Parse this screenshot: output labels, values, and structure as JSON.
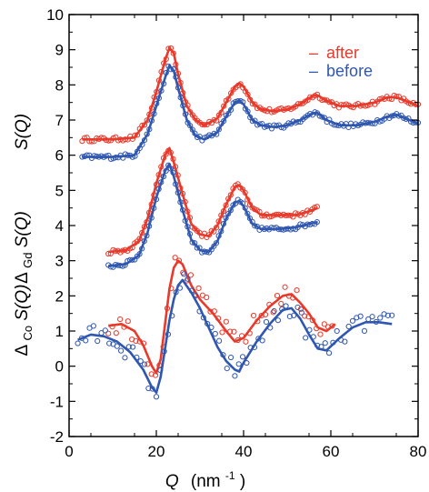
{
  "chart_data": {
    "type": "scatter",
    "xlabel": "Q",
    "xlabel_unit": "(nm",
    "xlabel_unit_exp": "-1",
    "xlabel_unit_close": ")",
    "xlim": [
      0,
      80
    ],
    "ylim": [
      -2,
      10
    ],
    "xticks": [
      "0",
      "20",
      "40",
      "60",
      "80"
    ],
    "yticks": [
      "-2",
      "-1",
      "0",
      "1",
      "2",
      "3",
      "4",
      "5",
      "6",
      "7",
      "8",
      "9",
      "10"
    ],
    "grid": false,
    "legend_position": "top-right",
    "legend": [
      {
        "label": "after",
        "dash": "–",
        "color": "#e8392a"
      },
      {
        "label": "before",
        "dash": "–",
        "color": "#2f57b0"
      }
    ],
    "row_labels": [
      {
        "main": "S(Q)"
      },
      {
        "prefix": "Δ",
        "sub": "Gd",
        "main": "S(Q)"
      },
      {
        "prefix": "Δ",
        "sub": "Co",
        "main": "S(Q)"
      }
    ],
    "colors": {
      "after": "#e8392a",
      "before": "#2f57b0"
    },
    "series": [
      {
        "name": "after",
        "group": "S(Q)",
        "color": "#e8392a",
        "curve": [
          [
            3,
            6.45
          ],
          [
            10,
            6.45
          ],
          [
            15,
            6.5
          ],
          [
            18,
            7.0
          ],
          [
            20,
            7.8
          ],
          [
            22,
            8.7
          ],
          [
            23,
            9.05
          ],
          [
            24,
            8.9
          ],
          [
            25,
            8.3
          ],
          [
            27,
            7.4
          ],
          [
            29,
            7.0
          ],
          [
            31,
            6.85
          ],
          [
            34,
            7.05
          ],
          [
            36,
            7.5
          ],
          [
            38,
            7.95
          ],
          [
            39,
            8.05
          ],
          [
            40,
            7.95
          ],
          [
            42,
            7.5
          ],
          [
            44,
            7.3
          ],
          [
            47,
            7.25
          ],
          [
            50,
            7.3
          ],
          [
            53,
            7.45
          ],
          [
            56,
            7.7
          ],
          [
            57,
            7.7
          ],
          [
            59,
            7.55
          ],
          [
            62,
            7.4
          ],
          [
            66,
            7.4
          ],
          [
            70,
            7.5
          ],
          [
            73,
            7.65
          ],
          [
            75,
            7.65
          ],
          [
            77,
            7.55
          ],
          [
            80,
            7.4
          ]
        ]
      },
      {
        "name": "before",
        "group": "S(Q)",
        "color": "#2f57b0",
        "curve": [
          [
            3,
            5.95
          ],
          [
            10,
            5.95
          ],
          [
            15,
            6.0
          ],
          [
            18,
            6.6
          ],
          [
            20,
            7.4
          ],
          [
            22,
            8.2
          ],
          [
            23,
            8.55
          ],
          [
            24,
            8.4
          ],
          [
            25,
            7.9
          ],
          [
            27,
            7.0
          ],
          [
            29,
            6.55
          ],
          [
            31,
            6.45
          ],
          [
            34,
            6.65
          ],
          [
            36,
            7.1
          ],
          [
            38,
            7.5
          ],
          [
            39,
            7.55
          ],
          [
            40,
            7.45
          ],
          [
            42,
            7.0
          ],
          [
            44,
            6.85
          ],
          [
            47,
            6.8
          ],
          [
            50,
            6.85
          ],
          [
            53,
            7.0
          ],
          [
            56,
            7.2
          ],
          [
            57,
            7.2
          ],
          [
            59,
            7.0
          ],
          [
            62,
            6.85
          ],
          [
            66,
            6.85
          ],
          [
            70,
            6.95
          ],
          [
            73,
            7.1
          ],
          [
            75,
            7.15
          ],
          [
            77,
            7.05
          ],
          [
            80,
            6.9
          ]
        ]
      },
      {
        "name": "after",
        "group": "ΔGdS(Q)",
        "color": "#e8392a",
        "curve": [
          [
            9,
            3.25
          ],
          [
            13,
            3.3
          ],
          [
            16,
            3.55
          ],
          [
            18,
            4.2
          ],
          [
            20,
            5.2
          ],
          [
            22,
            6.0
          ],
          [
            23,
            6.2
          ],
          [
            24,
            5.8
          ],
          [
            26,
            4.9
          ],
          [
            28,
            4.05
          ],
          [
            30,
            3.75
          ],
          [
            32,
            3.7
          ],
          [
            34,
            4.0
          ],
          [
            36,
            4.6
          ],
          [
            38,
            5.1
          ],
          [
            39,
            5.15
          ],
          [
            40,
            5.0
          ],
          [
            42,
            4.5
          ],
          [
            44,
            4.3
          ],
          [
            48,
            4.3
          ],
          [
            52,
            4.3
          ],
          [
            55,
            4.4
          ],
          [
            57,
            4.5
          ]
        ]
      },
      {
        "name": "before",
        "group": "ΔGdS(Q)",
        "color": "#2f57b0",
        "curve": [
          [
            9,
            2.85
          ],
          [
            13,
            2.9
          ],
          [
            16,
            3.15
          ],
          [
            18,
            3.8
          ],
          [
            20,
            4.8
          ],
          [
            22,
            5.55
          ],
          [
            23,
            5.75
          ],
          [
            24,
            5.4
          ],
          [
            26,
            4.45
          ],
          [
            28,
            3.6
          ],
          [
            30,
            3.3
          ],
          [
            32,
            3.25
          ],
          [
            34,
            3.55
          ],
          [
            36,
            4.2
          ],
          [
            38,
            4.65
          ],
          [
            39,
            4.7
          ],
          [
            40,
            4.55
          ],
          [
            42,
            4.05
          ],
          [
            44,
            3.9
          ],
          [
            48,
            3.9
          ],
          [
            52,
            3.95
          ],
          [
            55,
            4.05
          ],
          [
            57,
            4.1
          ]
        ]
      },
      {
        "name": "after",
        "group": "ΔCoS(Q)",
        "color": "#e8392a",
        "curve": [
          [
            9,
            1.15
          ],
          [
            12,
            1.2
          ],
          [
            15,
            1.0
          ],
          [
            17,
            0.6
          ],
          [
            19,
            0.0
          ],
          [
            20,
            -0.2
          ],
          [
            21,
            0.2
          ],
          [
            22,
            1.2
          ],
          [
            23,
            2.2
          ],
          [
            24,
            2.8
          ],
          [
            25,
            3.0
          ],
          [
            26,
            2.9
          ],
          [
            28,
            2.3
          ],
          [
            30,
            1.9
          ],
          [
            33,
            1.5
          ],
          [
            36,
            1.0
          ],
          [
            38,
            0.7
          ],
          [
            40,
            0.8
          ],
          [
            43,
            1.3
          ],
          [
            46,
            1.7
          ],
          [
            49,
            2.0
          ],
          [
            51,
            2.05
          ],
          [
            53,
            1.8
          ],
          [
            55,
            1.5
          ],
          [
            57,
            1.1
          ],
          [
            59,
            1.0
          ],
          [
            61,
            1.2
          ]
        ]
      },
      {
        "name": "before",
        "group": "ΔCoS(Q)",
        "color": "#2f57b0",
        "curve": [
          [
            2,
            0.75
          ],
          [
            5,
            0.9
          ],
          [
            8,
            0.85
          ],
          [
            11,
            0.7
          ],
          [
            14,
            0.4
          ],
          [
            17,
            -0.1
          ],
          [
            19,
            -0.6
          ],
          [
            20,
            -0.75
          ],
          [
            21,
            -0.3
          ],
          [
            22,
            0.5
          ],
          [
            23,
            1.3
          ],
          [
            24,
            1.9
          ],
          [
            25,
            2.3
          ],
          [
            26,
            2.45
          ],
          [
            28,
            2.1
          ],
          [
            30,
            1.65
          ],
          [
            32,
            1.1
          ],
          [
            34,
            0.55
          ],
          [
            36,
            0.15
          ],
          [
            38,
            -0.1
          ],
          [
            39,
            -0.15
          ],
          [
            40,
            0.1
          ],
          [
            43,
            0.7
          ],
          [
            46,
            1.2
          ],
          [
            49,
            1.6
          ],
          [
            51,
            1.65
          ],
          [
            53,
            1.35
          ],
          [
            55,
            0.9
          ],
          [
            57,
            0.5
          ],
          [
            59,
            0.45
          ],
          [
            62,
            0.8
          ],
          [
            65,
            1.1
          ],
          [
            68,
            1.25
          ],
          [
            71,
            1.25
          ],
          [
            74,
            1.2
          ]
        ]
      }
    ]
  }
}
